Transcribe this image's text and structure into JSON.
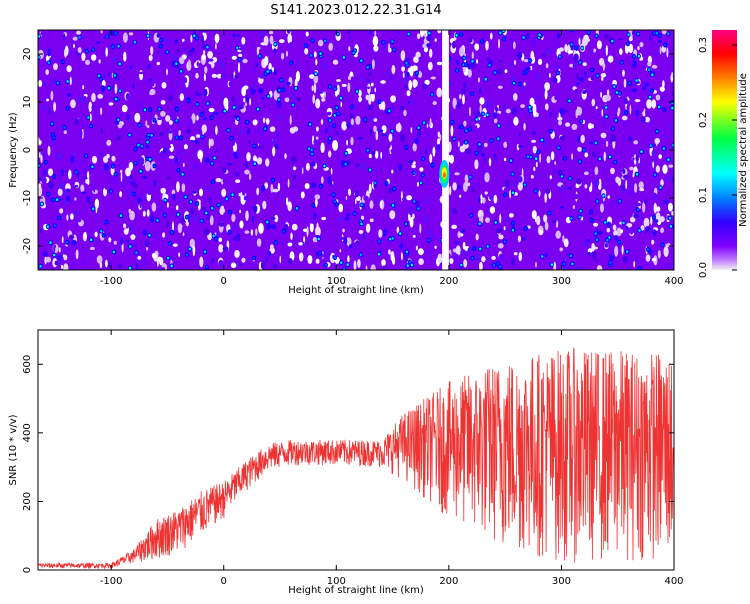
{
  "title": "S141.2023.012.22.31.G14",
  "chart_data": [
    {
      "type": "heatmap",
      "xlabel": "Height of straight line (km)",
      "ylabel": "Frequency (Hz)",
      "xlim": [
        -165,
        400
      ],
      "ylim": [
        -25,
        25
      ],
      "x_ticks": [
        -100,
        0,
        100,
        200,
        300,
        400
      ],
      "y_ticks": [
        -20,
        -10,
        0,
        10,
        20
      ],
      "colorbar": {
        "label": "Normalized spectral amplitude",
        "range": [
          0,
          0.32
        ],
        "ticks": [
          0.0,
          0.1,
          0.2,
          0.3
        ],
        "colors": [
          "#f0f0f0",
          "#a000ff",
          "#6000ff",
          "#0000ff",
          "#0080ff",
          "#00ffff",
          "#00ff00",
          "#ffff00",
          "#ff8000",
          "#ff0000",
          "#ff0080"
        ]
      },
      "background_color": "#7b00f0",
      "gap": {
        "x": [
          194,
          200
        ],
        "color": "#ffffff"
      },
      "hotspot": {
        "x": 196,
        "y": -5,
        "value": 0.25
      }
    },
    {
      "type": "line",
      "xlabel": "Height of straight line (km)",
      "ylabel": "SNR (10 * v/v)",
      "xlim": [
        -165,
        400
      ],
      "ylim": [
        0,
        700
      ],
      "x_ticks": [
        -100,
        0,
        100,
        200,
        300,
        400
      ],
      "y_ticks": [
        0,
        200,
        400,
        600
      ],
      "color": "#ee3333",
      "envelope": [
        {
          "x": -165,
          "low": 5,
          "high": 20
        },
        {
          "x": -100,
          "low": 5,
          "high": 20
        },
        {
          "x": -80,
          "low": 20,
          "high": 60
        },
        {
          "x": -60,
          "low": 30,
          "high": 150
        },
        {
          "x": -40,
          "low": 50,
          "high": 180
        },
        {
          "x": -20,
          "low": 100,
          "high": 230
        },
        {
          "x": 0,
          "low": 150,
          "high": 260
        },
        {
          "x": 20,
          "low": 230,
          "high": 320
        },
        {
          "x": 40,
          "low": 290,
          "high": 370
        },
        {
          "x": 60,
          "low": 305,
          "high": 380
        },
        {
          "x": 100,
          "low": 305,
          "high": 380
        },
        {
          "x": 140,
          "low": 300,
          "high": 380
        },
        {
          "x": 160,
          "low": 260,
          "high": 460
        },
        {
          "x": 200,
          "low": 150,
          "high": 550
        },
        {
          "x": 250,
          "low": 60,
          "high": 620
        },
        {
          "x": 300,
          "low": 20,
          "high": 650
        },
        {
          "x": 400,
          "low": 30,
          "high": 640
        }
      ]
    }
  ]
}
